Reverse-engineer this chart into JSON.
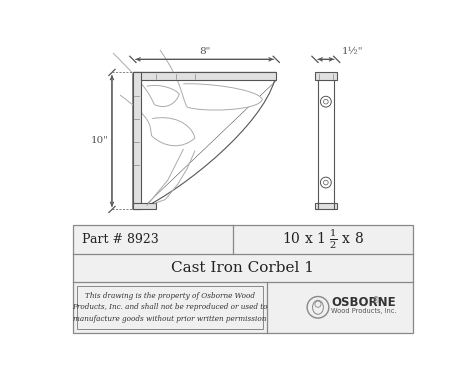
{
  "bg_color": "#ffffff",
  "line_color": "#aaaaaa",
  "dark_line": "#555555",
  "med_line": "#888888",
  "part_number": "Part # 8923",
  "dim_text": "10 x 1 ½ x 8",
  "title": "Cast Iron Corbel 1",
  "disclaimer": "This drawing is the property of Osborne Wood\nProducts, Inc. and shall not be reproduced or used to\nmanufacture goods without prior written permission",
  "logo_text": "SBORNE",
  "logo_sub": "Wood Products, Inc.",
  "dim_8": "8\"",
  "dim_1half": "1½\"",
  "dim_10": "10\""
}
